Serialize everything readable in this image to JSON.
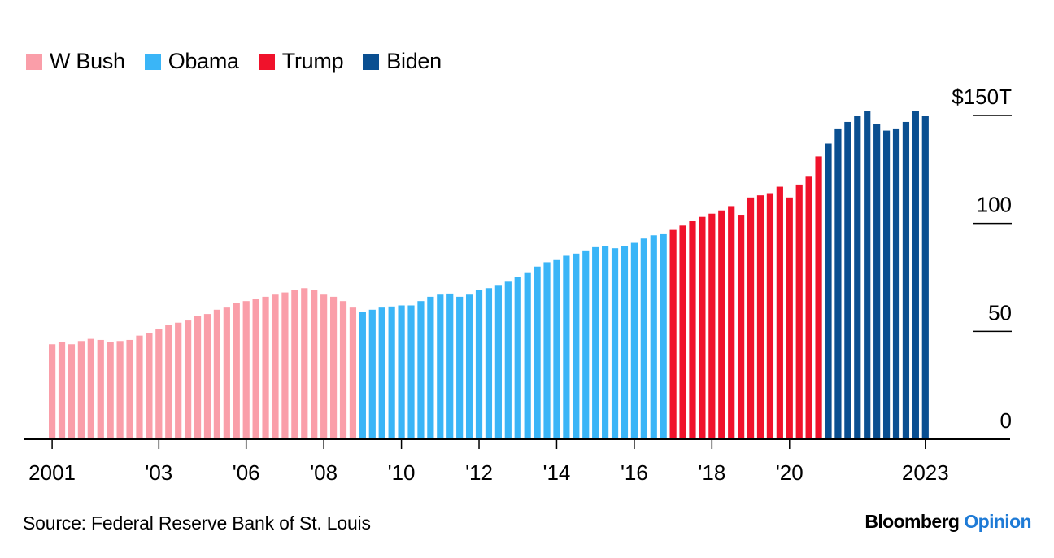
{
  "chart_data": {
    "type": "bar",
    "title": "",
    "xlabel": "",
    "ylabel": "",
    "unit_label": "$150T",
    "ylim": [
      0,
      150
    ],
    "y_ticks": [
      {
        "value": 0,
        "label": "0"
      },
      {
        "value": 50,
        "label": "50"
      },
      {
        "value": 100,
        "label": "100"
      },
      {
        "value": 150,
        "label": "$150T"
      }
    ],
    "x_ticks": [
      {
        "index": 0,
        "label": "2001"
      },
      {
        "index": 11,
        "label": "'03"
      },
      {
        "index": 20,
        "label": "'06"
      },
      {
        "index": 28,
        "label": "'08"
      },
      {
        "index": 36,
        "label": "'10"
      },
      {
        "index": 44,
        "label": "'12"
      },
      {
        "index": 52,
        "label": "'14"
      },
      {
        "index": 60,
        "label": "'16"
      },
      {
        "index": 68,
        "label": "'18"
      },
      {
        "index": 76,
        "label": "'20"
      },
      {
        "index": 90,
        "label": "2023"
      }
    ],
    "grid": false,
    "legend_position": "top-left",
    "series": [
      {
        "name": "W Bush",
        "color": "#fa9ea9",
        "start_index": 0,
        "values": [
          44,
          45,
          44,
          45.5,
          46.5,
          46,
          45,
          45.5,
          46,
          48,
          49,
          51,
          53,
          54,
          55,
          57,
          58,
          60,
          61,
          63,
          64,
          65,
          66,
          67,
          68,
          69,
          70,
          69,
          67,
          66,
          64,
          61
        ]
      },
      {
        "name": "Obama",
        "color": "#3ab5f7",
        "start_index": 32,
        "values": [
          59,
          60,
          61,
          61.5,
          62,
          62,
          64,
          66,
          67,
          67.5,
          66,
          67,
          69,
          70,
          71.5,
          73,
          75,
          77,
          80,
          82,
          83,
          85,
          86,
          87.5,
          89,
          89.5,
          88.5,
          89.5,
          91,
          93,
          94.5,
          95
        ]
      },
      {
        "name": "Trump",
        "color": "#f0122b",
        "start_index": 64,
        "values": [
          97,
          99,
          101,
          103,
          104.5,
          106,
          108,
          104,
          112,
          113,
          114,
          117,
          112,
          118,
          122,
          131
        ]
      },
      {
        "name": "Biden",
        "color": "#0a4f91",
        "start_index": 80,
        "values": [
          137,
          144,
          147,
          150,
          152,
          146,
          143,
          144,
          147,
          152,
          150
        ]
      }
    ]
  },
  "legend": [
    {
      "label": "W Bush",
      "color": "#fa9ea9"
    },
    {
      "label": "Obama",
      "color": "#3ab5f7"
    },
    {
      "label": "Trump",
      "color": "#f0122b"
    },
    {
      "label": "Biden",
      "color": "#0a4f91"
    }
  ],
  "footer": {
    "source": "Source: Federal Reserve Bank of St. Louis",
    "brand_main": "Bloomberg",
    "brand_sub": "Opinion"
  }
}
